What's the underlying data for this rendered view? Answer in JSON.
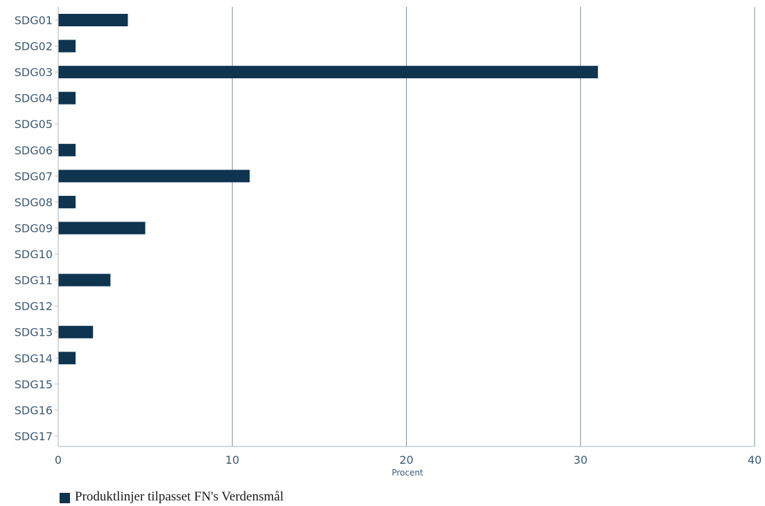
{
  "chart_data": {
    "type": "bar",
    "orientation": "horizontal",
    "categories": [
      "SDG01",
      "SDG02",
      "SDG03",
      "SDG04",
      "SDG05",
      "SDG06",
      "SDG07",
      "SDG08",
      "SDG09",
      "SDG10",
      "SDG11",
      "SDG12",
      "SDG13",
      "SDG14",
      "SDG15",
      "SDG16",
      "SDG17"
    ],
    "series": [
      {
        "name": "Produktlinjer tilpasset FN's Verdensmål",
        "values": [
          4,
          1,
          31,
          1,
          0,
          1,
          11,
          1,
          5,
          0,
          3,
          0,
          2,
          1,
          0,
          0,
          0
        ],
        "color": "#0e3450"
      }
    ],
    "xlabel": "Procent",
    "xlim": [
      0,
      40
    ],
    "xticks": [
      0,
      10,
      20,
      30,
      40
    ],
    "grid": "vertical",
    "legend_position": "bottom-left",
    "colors": {
      "bar": "#0e3450",
      "grid": "#7f8c96",
      "text": "#3e5a74"
    }
  }
}
